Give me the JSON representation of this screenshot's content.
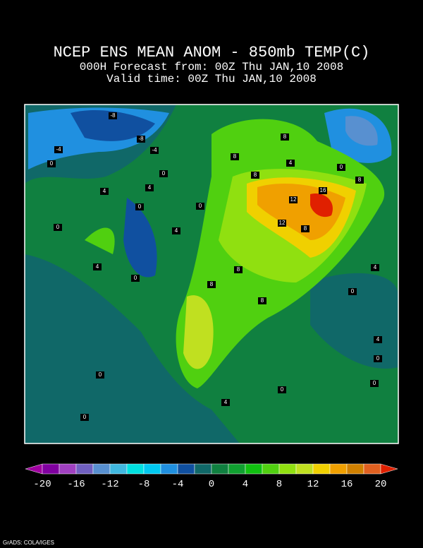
{
  "header": {
    "title": "NCEP ENS MEAN ANOM - 850mb TEMP(C)",
    "forecast": "000H Forecast from: 00Z Thu JAN,10 2008",
    "valid": "Valid time: 00Z Thu JAN,10 2008"
  },
  "contour_labels": [
    "-8",
    "-8",
    "-4",
    "-4",
    "0",
    "4",
    "0",
    "4",
    "0",
    "4",
    "0",
    "0",
    "4",
    "0",
    "8",
    "8",
    "4",
    "8",
    "0",
    "8",
    "12",
    "16",
    "12",
    "8",
    "8",
    "8",
    "8",
    "0",
    "4",
    "0",
    "4",
    "0",
    "0",
    "0",
    "4",
    "0"
  ],
  "colorbar": {
    "colors": [
      "#a000a0",
      "#8000a0",
      "#a040c0",
      "#7060c0",
      "#5890d0",
      "#40b8e0",
      "#00e0e0",
      "#00c8f0",
      "#2090e0",
      "#1050a0",
      "#106868",
      "#108040",
      "#10a030",
      "#10c010",
      "#50d010",
      "#90e010",
      "#c0e020",
      "#f0d000",
      "#f0a000",
      "#d08000",
      "#e06020",
      "#e02000"
    ],
    "ticks": [
      -20,
      -16,
      -12,
      -8,
      -4,
      0,
      4,
      8,
      12,
      16,
      20
    ]
  },
  "footer": "GrADS: COLA/IGES"
}
